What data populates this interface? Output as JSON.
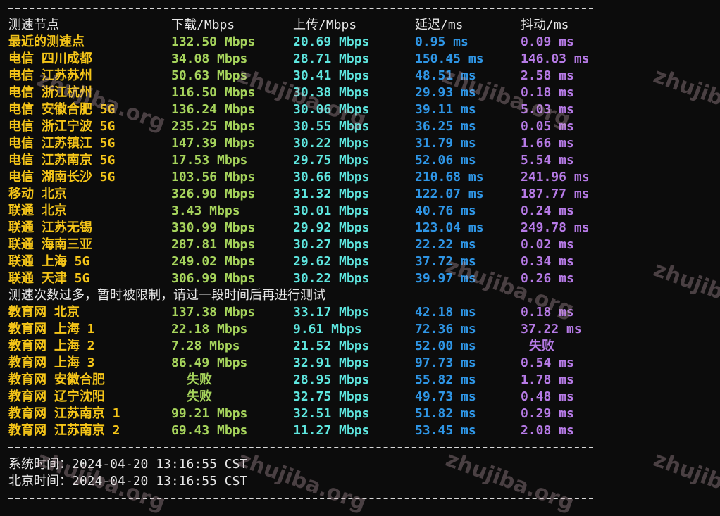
{
  "colors": {
    "node": "#f5c518",
    "download": "#a6d45c",
    "upload": "#5ee6df",
    "latency": "#2f96e6",
    "jitter": "#b67ae6",
    "background": "#0c0c0c"
  },
  "header": {
    "node": "测速节点",
    "download": "下载/Mbps",
    "upload": "上传/Mbps",
    "latency": "延迟/ms",
    "jitter": "抖动/ms"
  },
  "rows": [
    {
      "node": "最近的测速点",
      "download": "132.50 Mbps",
      "upload": "20.69 Mbps",
      "latency": "0.95 ms",
      "jitter": "0.09 ms"
    },
    {
      "node": "电信 四川成都",
      "download": "34.08 Mbps",
      "upload": "28.71 Mbps",
      "latency": "150.45 ms",
      "jitter": "146.03 ms"
    },
    {
      "node": "电信 江苏苏州",
      "download": "50.63 Mbps",
      "upload": "30.41 Mbps",
      "latency": "48.51 ms",
      "jitter": "2.58 ms"
    },
    {
      "node": "电信 浙江杭州",
      "download": "116.50 Mbps",
      "upload": "30.38 Mbps",
      "latency": "29.93 ms",
      "jitter": "0.18 ms"
    },
    {
      "node": "电信 安徽合肥 5G",
      "download": "136.24 Mbps",
      "upload": "30.06 Mbps",
      "latency": "39.11 ms",
      "jitter": "5.03 ms"
    },
    {
      "node": "电信 浙江宁波 5G",
      "download": "235.25 Mbps",
      "upload": "30.55 Mbps",
      "latency": "36.25 ms",
      "jitter": "0.05 ms"
    },
    {
      "node": "电信 江苏镇江 5G",
      "download": "147.39 Mbps",
      "upload": "30.22 Mbps",
      "latency": "31.79 ms",
      "jitter": "1.66 ms"
    },
    {
      "node": "电信 江苏南京 5G",
      "download": "17.53 Mbps",
      "upload": "29.75 Mbps",
      "latency": "52.06 ms",
      "jitter": "5.54 ms"
    },
    {
      "node": "电信 湖南长沙 5G",
      "download": "103.56 Mbps",
      "upload": "30.66 Mbps",
      "latency": "210.68 ms",
      "jitter": "241.96 ms"
    },
    {
      "node": "移动 北京",
      "download": "326.90 Mbps",
      "upload": "31.32 Mbps",
      "latency": "122.07 ms",
      "jitter": "187.77 ms"
    },
    {
      "node": "联通 北京",
      "download": "3.43 Mbps",
      "upload": "30.01 Mbps",
      "latency": "40.76 ms",
      "jitter": "0.24 ms"
    },
    {
      "node": "联通 江苏无锡",
      "download": "330.99 Mbps",
      "upload": "29.92 Mbps",
      "latency": "123.04 ms",
      "jitter": "249.78 ms"
    },
    {
      "node": "联通 海南三亚",
      "download": "287.81 Mbps",
      "upload": "30.27 Mbps",
      "latency": "22.22 ms",
      "jitter": "0.02 ms"
    },
    {
      "node": "联通 上海 5G",
      "download": "249.02 Mbps",
      "upload": "29.62 Mbps",
      "latency": "37.72 ms",
      "jitter": "0.34 ms"
    },
    {
      "node": "联通 天津 5G",
      "download": "306.99 Mbps",
      "upload": "30.22 Mbps",
      "latency": "39.97 ms",
      "jitter": "0.26 ms"
    }
  ],
  "notice": "测速次数过多，暂时被限制，请过一段时间后再进行测试",
  "edu_rows": [
    {
      "node": "教育网 北京",
      "download": "137.38 Mbps",
      "upload": "33.17 Mbps",
      "latency": "42.18 ms",
      "jitter": "0.18 ms"
    },
    {
      "node": "教育网 上海 1",
      "download": "22.18 Mbps",
      "upload": "9.61 Mbps",
      "latency": "72.36 ms",
      "jitter": "37.22 ms"
    },
    {
      "node": "教育网 上海 2",
      "download": "7.28 Mbps",
      "upload": "21.52 Mbps",
      "latency": "52.00 ms",
      "jitter": "失败"
    },
    {
      "node": "教育网 上海 3",
      "download": "86.49 Mbps",
      "upload": "32.91 Mbps",
      "latency": "97.73 ms",
      "jitter": "0.54 ms"
    },
    {
      "node": "教育网 安徽合肥",
      "download": "失败",
      "upload": "28.95 Mbps",
      "latency": "55.82 ms",
      "jitter": "1.78 ms"
    },
    {
      "node": "教育网 辽宁沈阳",
      "download": "失败",
      "upload": "32.75 Mbps",
      "latency": "49.73 ms",
      "jitter": "0.48 ms"
    },
    {
      "node": "教育网 江苏南京 1",
      "download": "99.21 Mbps",
      "upload": "32.51 Mbps",
      "latency": "51.82 ms",
      "jitter": "0.29 ms"
    },
    {
      "node": "教育网 江苏南京 2",
      "download": "69.43 Mbps",
      "upload": "11.27 Mbps",
      "latency": "53.45 ms",
      "jitter": "2.08 ms"
    }
  ],
  "times": [
    {
      "label": "系统时间：",
      "value": "2024-04-20 13:16:55 CST"
    },
    {
      "label": "北京时间：",
      "value": "2024-04-20 13:16:55 CST"
    }
  ],
  "watermark": "zhujiba.org"
}
